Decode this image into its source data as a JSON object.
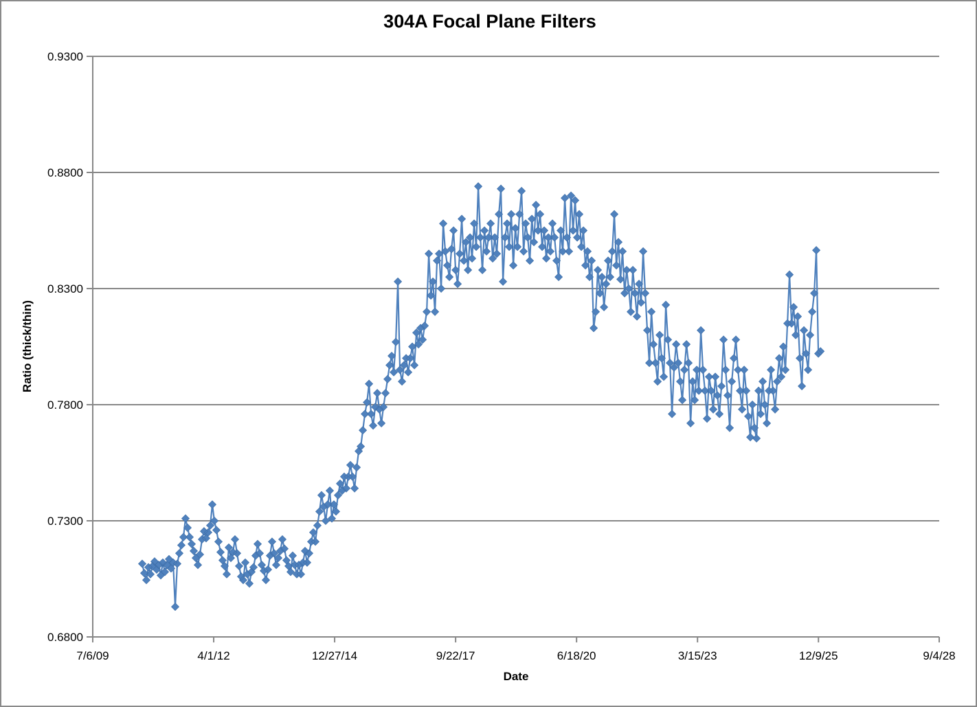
{
  "chart_data": {
    "type": "line",
    "marker": "diamond",
    "title": "304A Focal Plane Filters",
    "xlabel": "Date",
    "ylabel": "Ratio (thick/thin)",
    "grid": "horizontal",
    "legend": "none",
    "ylim": [
      0.68,
      0.93
    ],
    "xlim_years": [
      2009.512,
      2028.675
    ],
    "y_ticks": [
      {
        "label": "0.6800",
        "value": 0.68
      },
      {
        "label": "0.7300",
        "value": 0.73
      },
      {
        "label": "0.7800",
        "value": 0.78
      },
      {
        "label": "0.8300",
        "value": 0.83
      },
      {
        "label": "0.8800",
        "value": 0.88
      },
      {
        "label": "0.9300",
        "value": 0.93
      }
    ],
    "x_ticks": [
      {
        "label": "7/6/09",
        "year": 2009.512
      },
      {
        "label": "4/1/12",
        "year": 2012.25
      },
      {
        "label": "12/27/14",
        "year": 2014.988
      },
      {
        "label": "9/22/17",
        "year": 2017.727
      },
      {
        "label": "6/18/20",
        "year": 2020.465
      },
      {
        "label": "3/15/23",
        "year": 2023.203
      },
      {
        "label": "12/9/25",
        "year": 2025.941
      },
      {
        "label": "9/4/28",
        "year": 2028.675
      }
    ],
    "colors": {
      "series": "#4F81BD",
      "marker_edge": "#3A6BA5",
      "grid": "#878787",
      "axis": "#878787",
      "text": "#000000"
    },
    "series_name": "Ratio (thick/thin)",
    "x_start_year": 2010.632,
    "x_step_years": 0.04667,
    "values": [
      0.7115,
      0.7075,
      0.7045,
      0.71,
      0.707,
      0.7105,
      0.7125,
      0.709,
      0.711,
      0.7065,
      0.712,
      0.708,
      0.711,
      0.7135,
      0.7095,
      0.712,
      0.693,
      0.7115,
      0.716,
      0.7195,
      0.723,
      0.731,
      0.727,
      0.723,
      0.72,
      0.717,
      0.714,
      0.711,
      0.7155,
      0.722,
      0.7255,
      0.7225,
      0.725,
      0.728,
      0.737,
      0.73,
      0.726,
      0.721,
      0.7165,
      0.713,
      0.7105,
      0.707,
      0.7185,
      0.714,
      0.7165,
      0.722,
      0.716,
      0.7105,
      0.706,
      0.7045,
      0.712,
      0.707,
      0.703,
      0.708,
      0.71,
      0.715,
      0.72,
      0.716,
      0.711,
      0.7085,
      0.7045,
      0.709,
      0.715,
      0.721,
      0.716,
      0.711,
      0.714,
      0.717,
      0.722,
      0.718,
      0.713,
      0.7105,
      0.708,
      0.715,
      0.711,
      0.707,
      0.711,
      0.707,
      0.712,
      0.717,
      0.712,
      0.716,
      0.721,
      0.725,
      0.721,
      0.728,
      0.734,
      0.741,
      0.736,
      0.73,
      0.737,
      0.743,
      0.731,
      0.737,
      0.734,
      0.741,
      0.746,
      0.743,
      0.749,
      0.744,
      0.749,
      0.754,
      0.749,
      0.744,
      0.753,
      0.76,
      0.762,
      0.769,
      0.776,
      0.781,
      0.789,
      0.776,
      0.771,
      0.779,
      0.785,
      0.778,
      0.772,
      0.779,
      0.785,
      0.791,
      0.797,
      0.801,
      0.794,
      0.807,
      0.833,
      0.795,
      0.79,
      0.797,
      0.8,
      0.794,
      0.8,
      0.805,
      0.797,
      0.811,
      0.806,
      0.813,
      0.808,
      0.814,
      0.82,
      0.845,
      0.827,
      0.833,
      0.82,
      0.842,
      0.845,
      0.83,
      0.858,
      0.846,
      0.84,
      0.835,
      0.847,
      0.855,
      0.838,
      0.832,
      0.845,
      0.86,
      0.842,
      0.85,
      0.838,
      0.852,
      0.843,
      0.858,
      0.848,
      0.874,
      0.852,
      0.838,
      0.855,
      0.846,
      0.852,
      0.858,
      0.843,
      0.852,
      0.845,
      0.862,
      0.873,
      0.833,
      0.852,
      0.858,
      0.848,
      0.862,
      0.84,
      0.856,
      0.848,
      0.862,
      0.872,
      0.846,
      0.858,
      0.852,
      0.842,
      0.86,
      0.85,
      0.866,
      0.855,
      0.862,
      0.848,
      0.855,
      0.843,
      0.852,
      0.846,
      0.858,
      0.852,
      0.842,
      0.835,
      0.855,
      0.846,
      0.869,
      0.852,
      0.846,
      0.87,
      0.855,
      0.868,
      0.852,
      0.862,
      0.848,
      0.855,
      0.84,
      0.846,
      0.835,
      0.842,
      0.813,
      0.82,
      0.838,
      0.828,
      0.835,
      0.822,
      0.832,
      0.842,
      0.835,
      0.846,
      0.862,
      0.84,
      0.85,
      0.834,
      0.846,
      0.828,
      0.838,
      0.83,
      0.82,
      0.838,
      0.828,
      0.818,
      0.832,
      0.824,
      0.846,
      0.828,
      0.812,
      0.798,
      0.82,
      0.806,
      0.798,
      0.79,
      0.81,
      0.8,
      0.792,
      0.823,
      0.808,
      0.798,
      0.776,
      0.796,
      0.806,
      0.798,
      0.79,
      0.782,
      0.795,
      0.806,
      0.798,
      0.772,
      0.79,
      0.782,
      0.795,
      0.786,
      0.812,
      0.795,
      0.786,
      0.774,
      0.792,
      0.786,
      0.778,
      0.792,
      0.784,
      0.776,
      0.788,
      0.808,
      0.795,
      0.784,
      0.77,
      0.79,
      0.8,
      0.808,
      0.795,
      0.786,
      0.778,
      0.795,
      0.786,
      0.775,
      0.766,
      0.78,
      0.77,
      0.7655,
      0.786,
      0.776,
      0.79,
      0.78,
      0.772,
      0.786,
      0.795,
      0.786,
      0.778,
      0.79,
      0.8,
      0.792,
      0.805,
      0.795,
      0.815,
      0.836,
      0.815,
      0.822,
      0.81,
      0.818,
      0.8,
      0.788,
      0.812,
      0.802,
      0.795,
      0.81,
      0.82,
      0.828,
      0.8465,
      0.802,
      0.803
    ]
  }
}
